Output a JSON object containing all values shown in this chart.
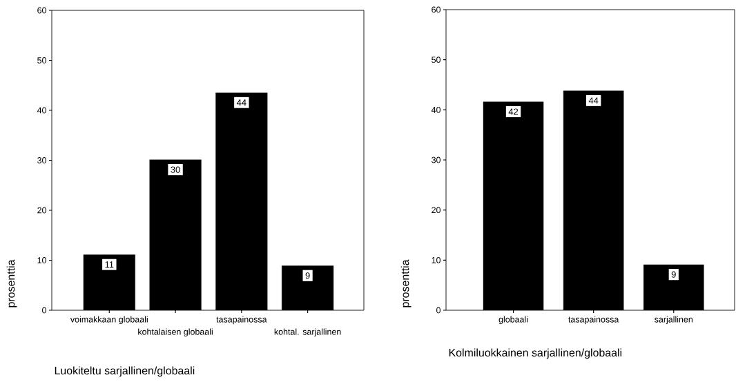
{
  "chart_data": [
    {
      "type": "bar",
      "categories": [
        "voimakkaan globaali",
        "kohtalaisen globaali",
        "tasapainossa",
        "kohtal. sarjallinen"
      ],
      "values": [
        11.1,
        30.1,
        43.5,
        8.9
      ],
      "value_labels": [
        "11",
        "30",
        "44",
        "9"
      ],
      "color": "#000000",
      "xlabel": "Luokiteltu sarjallinen/globaali",
      "ylabel": "prosenttia",
      "ylim": [
        0,
        60
      ],
      "yticks": [
        0,
        10,
        20,
        30,
        40,
        50,
        60
      ]
    },
    {
      "type": "bar",
      "categories": [
        "globaali",
        "tasapainossa",
        "sarjallinen"
      ],
      "values": [
        41.6,
        43.8,
        9.1
      ],
      "value_labels": [
        "42",
        "44",
        "9"
      ],
      "color": "#000000",
      "xlabel": "Kolmiluokkainen sarjallinen/globaali",
      "ylabel": "prosenttia",
      "ylim": [
        0,
        60
      ],
      "yticks": [
        0,
        10,
        20,
        30,
        40,
        50,
        60
      ]
    }
  ]
}
